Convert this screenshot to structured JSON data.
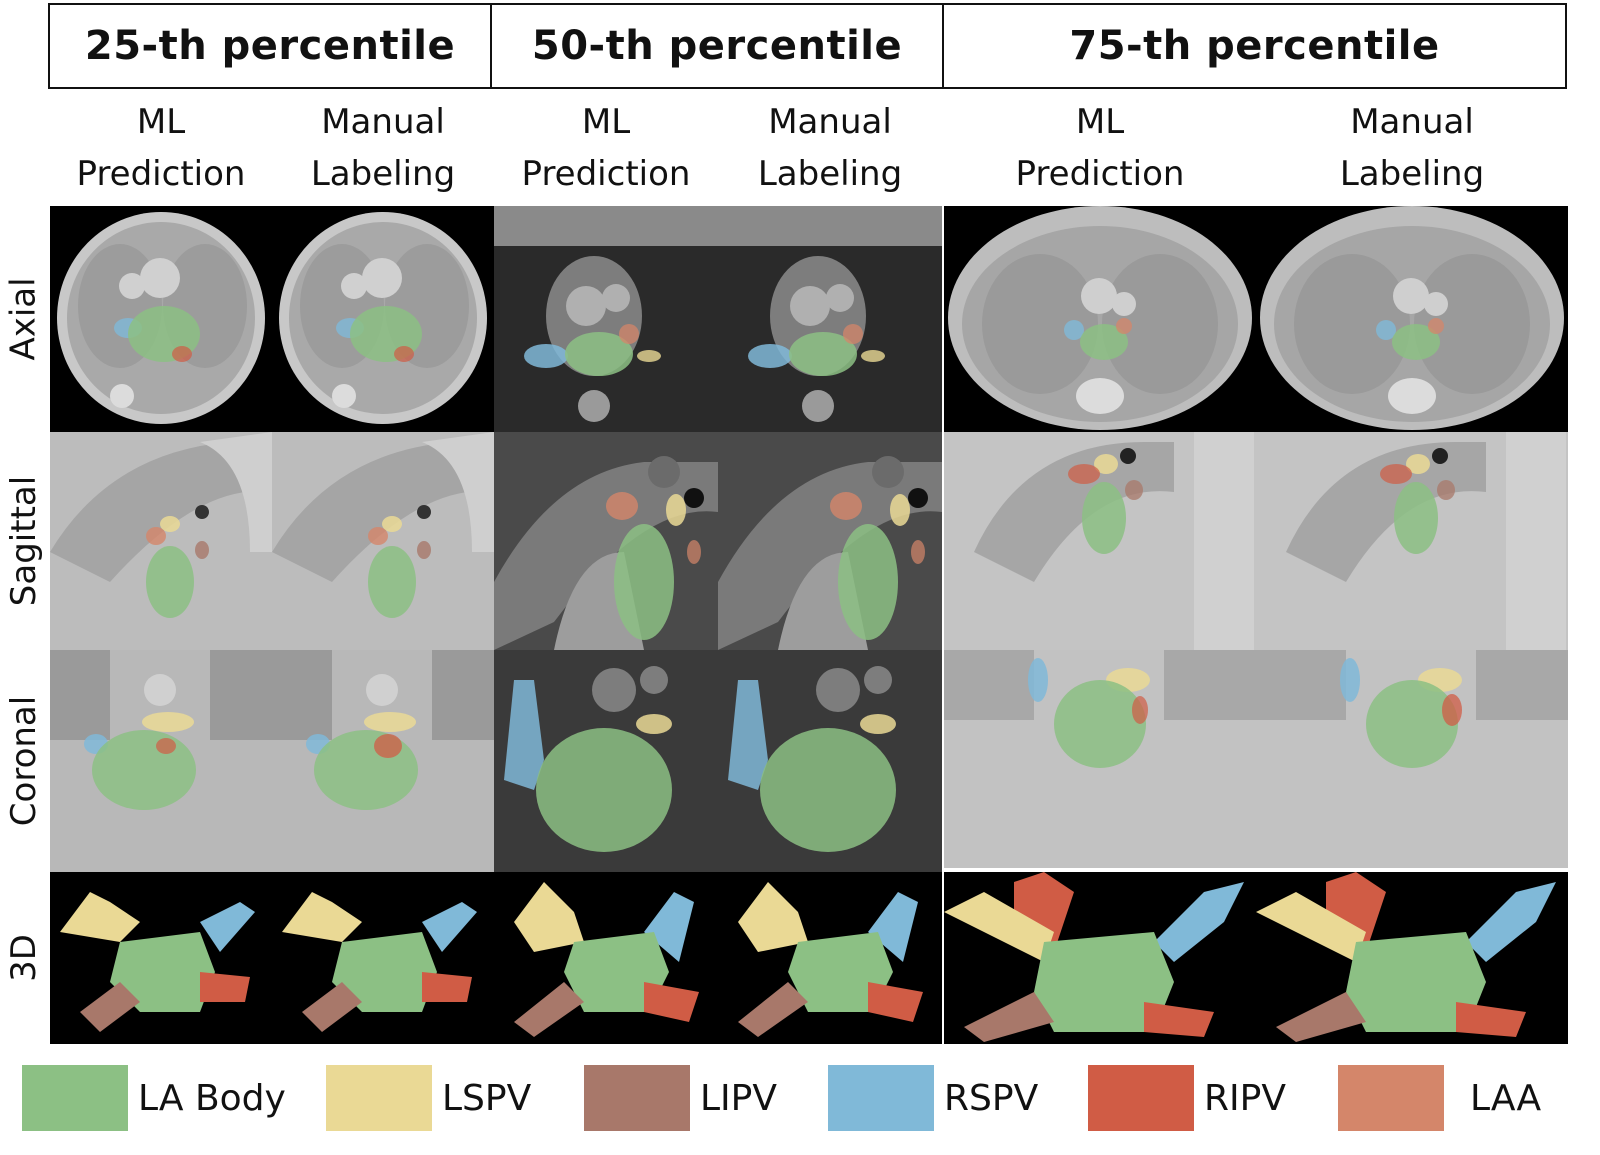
{
  "headers": [
    "25-th percentile",
    "50-th percentile",
    "75-th percentile"
  ],
  "subheaders": [
    {
      "line1": "ML",
      "line2": "Prediction"
    },
    {
      "line1": "Manual",
      "line2": "Labeling"
    },
    {
      "line1": "ML",
      "line2": "Prediction"
    },
    {
      "line1": "Manual",
      "line2": "Labeling"
    },
    {
      "line1": "ML",
      "line2": "Prediction"
    },
    {
      "line1": "Manual",
      "line2": "Labeling"
    }
  ],
  "rows": [
    "Axial",
    "Sagittal",
    "Coronal",
    "3D"
  ],
  "legend": [
    {
      "label": "LA Body",
      "color": "#8cc084"
    },
    {
      "label": "LSPV",
      "color": "#ead995"
    },
    {
      "label": "LIPV",
      "color": "#a8786a"
    },
    {
      "label": "RSPV",
      "color": "#80b9d8"
    },
    {
      "label": "RIPV",
      "color": "#d05c45"
    },
    {
      "label": "LAA",
      "color": "#d4866a"
    }
  ]
}
